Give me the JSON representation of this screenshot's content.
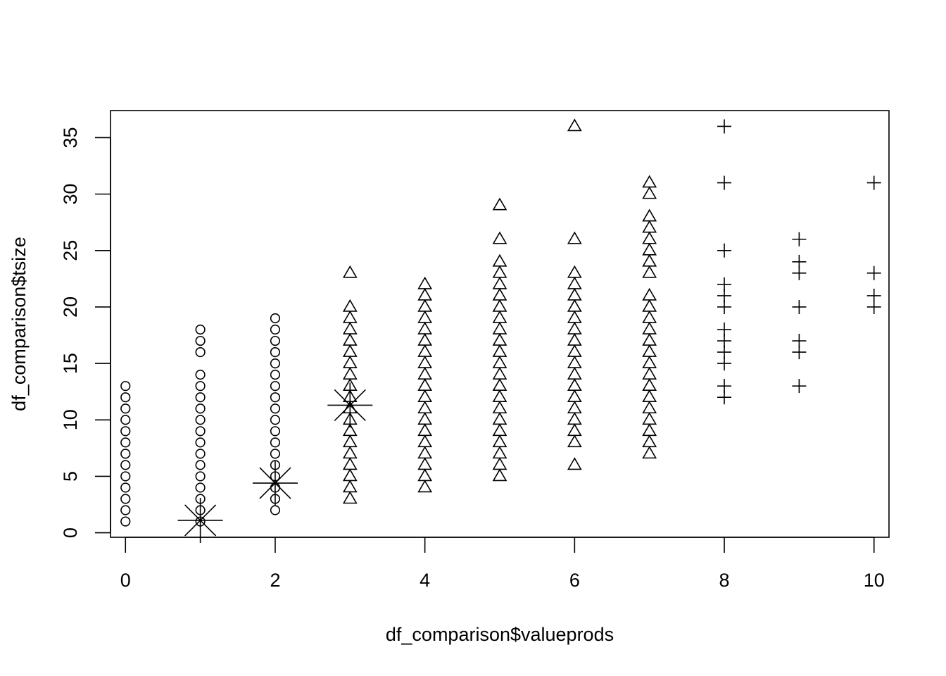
{
  "chart_data": {
    "type": "scatter",
    "xlabel": "df_comparison$valueprods",
    "ylabel": "df_comparison$tsize",
    "xlim": [
      -0.2,
      10.2
    ],
    "ylim": [
      -0.4,
      37.4
    ],
    "x_ticks": [
      0,
      2,
      4,
      6,
      8,
      10
    ],
    "y_ticks": [
      0,
      5,
      10,
      15,
      20,
      25,
      30,
      35
    ],
    "grid": false,
    "legend": "none",
    "series": [
      {
        "marker": "circle",
        "points": [
          [
            0,
            1
          ],
          [
            0,
            2
          ],
          [
            0,
            3
          ],
          [
            0,
            4
          ],
          [
            0,
            5
          ],
          [
            0,
            6
          ],
          [
            0,
            7
          ],
          [
            0,
            8
          ],
          [
            0,
            9
          ],
          [
            0,
            10
          ],
          [
            0,
            11
          ],
          [
            0,
            12
          ],
          [
            0,
            13
          ],
          [
            1,
            1
          ],
          [
            1,
            2
          ],
          [
            1,
            3
          ],
          [
            1,
            4
          ],
          [
            1,
            5
          ],
          [
            1,
            6
          ],
          [
            1,
            7
          ],
          [
            1,
            8
          ],
          [
            1,
            9
          ],
          [
            1,
            10
          ],
          [
            1,
            11
          ],
          [
            1,
            12
          ],
          [
            1,
            13
          ],
          [
            1,
            14
          ],
          [
            1,
            16
          ],
          [
            1,
            17
          ],
          [
            1,
            18
          ],
          [
            2,
            2
          ],
          [
            2,
            3
          ],
          [
            2,
            4
          ],
          [
            2,
            5
          ],
          [
            2,
            6
          ],
          [
            2,
            7
          ],
          [
            2,
            8
          ],
          [
            2,
            9
          ],
          [
            2,
            10
          ],
          [
            2,
            11
          ],
          [
            2,
            12
          ],
          [
            2,
            13
          ],
          [
            2,
            14
          ],
          [
            2,
            15
          ],
          [
            2,
            16
          ],
          [
            2,
            17
          ],
          [
            2,
            18
          ],
          [
            2,
            19
          ]
        ]
      },
      {
        "marker": "triangle",
        "points": [
          [
            3,
            3
          ],
          [
            3,
            4
          ],
          [
            3,
            5
          ],
          [
            3,
            6
          ],
          [
            3,
            7
          ],
          [
            3,
            8
          ],
          [
            3,
            9
          ],
          [
            3,
            10
          ],
          [
            3,
            11
          ],
          [
            3,
            12
          ],
          [
            3,
            13
          ],
          [
            3,
            14
          ],
          [
            3,
            15
          ],
          [
            3,
            16
          ],
          [
            3,
            17
          ],
          [
            3,
            18
          ],
          [
            3,
            19
          ],
          [
            3,
            20
          ],
          [
            3,
            23
          ],
          [
            4,
            4
          ],
          [
            4,
            5
          ],
          [
            4,
            6
          ],
          [
            4,
            7
          ],
          [
            4,
            8
          ],
          [
            4,
            9
          ],
          [
            4,
            10
          ],
          [
            4,
            11
          ],
          [
            4,
            12
          ],
          [
            4,
            13
          ],
          [
            4,
            14
          ],
          [
            4,
            15
          ],
          [
            4,
            16
          ],
          [
            4,
            17
          ],
          [
            4,
            18
          ],
          [
            4,
            19
          ],
          [
            4,
            20
          ],
          [
            4,
            21
          ],
          [
            4,
            22
          ],
          [
            5,
            5
          ],
          [
            5,
            6
          ],
          [
            5,
            7
          ],
          [
            5,
            8
          ],
          [
            5,
            9
          ],
          [
            5,
            10
          ],
          [
            5,
            11
          ],
          [
            5,
            12
          ],
          [
            5,
            13
          ],
          [
            5,
            14
          ],
          [
            5,
            15
          ],
          [
            5,
            16
          ],
          [
            5,
            17
          ],
          [
            5,
            18
          ],
          [
            5,
            19
          ],
          [
            5,
            20
          ],
          [
            5,
            21
          ],
          [
            5,
            22
          ],
          [
            5,
            23
          ],
          [
            5,
            24
          ],
          [
            5,
            26
          ],
          [
            5,
            29
          ],
          [
            6,
            6
          ],
          [
            6,
            8
          ],
          [
            6,
            9
          ],
          [
            6,
            10
          ],
          [
            6,
            11
          ],
          [
            6,
            12
          ],
          [
            6,
            13
          ],
          [
            6,
            14
          ],
          [
            6,
            15
          ],
          [
            6,
            16
          ],
          [
            6,
            17
          ],
          [
            6,
            18
          ],
          [
            6,
            19
          ],
          [
            6,
            20
          ],
          [
            6,
            21
          ],
          [
            6,
            22
          ],
          [
            6,
            23
          ],
          [
            6,
            26
          ],
          [
            6,
            36
          ],
          [
            7,
            7
          ],
          [
            7,
            8
          ],
          [
            7,
            9
          ],
          [
            7,
            10
          ],
          [
            7,
            11
          ],
          [
            7,
            12
          ],
          [
            7,
            13
          ],
          [
            7,
            14
          ],
          [
            7,
            15
          ],
          [
            7,
            16
          ],
          [
            7,
            17
          ],
          [
            7,
            18
          ],
          [
            7,
            19
          ],
          [
            7,
            20
          ],
          [
            7,
            21
          ],
          [
            7,
            23
          ],
          [
            7,
            24
          ],
          [
            7,
            25
          ],
          [
            7,
            26
          ],
          [
            7,
            27
          ],
          [
            7,
            28
          ],
          [
            7,
            30
          ],
          [
            7,
            31
          ]
        ]
      },
      {
        "marker": "plus",
        "points": [
          [
            8,
            12
          ],
          [
            8,
            13
          ],
          [
            8,
            15
          ],
          [
            8,
            16
          ],
          [
            8,
            17
          ],
          [
            8,
            18
          ],
          [
            8,
            20
          ],
          [
            8,
            21
          ],
          [
            8,
            22
          ],
          [
            8,
            25
          ],
          [
            8,
            31
          ],
          [
            8,
            36
          ],
          [
            9,
            13
          ],
          [
            9,
            16
          ],
          [
            9,
            17
          ],
          [
            9,
            20
          ],
          [
            9,
            23
          ],
          [
            9,
            24
          ],
          [
            9,
            26
          ],
          [
            10,
            20
          ],
          [
            10,
            21
          ],
          [
            10,
            23
          ],
          [
            10,
            31
          ]
        ]
      },
      {
        "marker": "star",
        "points": [
          [
            1,
            1.1
          ],
          [
            2,
            4.4
          ],
          [
            3,
            11.3
          ]
        ]
      }
    ]
  }
}
